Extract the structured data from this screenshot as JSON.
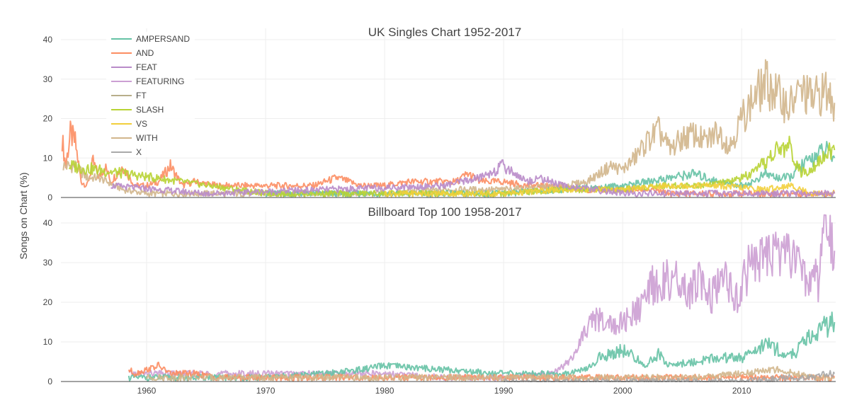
{
  "chart_data": {
    "type": "line",
    "ylabel": "Songs on Chart (%)",
    "xlim": [
      1952.8,
      2017.9
    ],
    "x_ticks": [
      1960,
      1970,
      1980,
      1990,
      2000,
      2010
    ],
    "grid": true,
    "legend_placement": "top-left",
    "legend": [
      {
        "name": "AMPERSAND",
        "color": "#66c2a5"
      },
      {
        "name": "AND",
        "color": "#fc8d62"
      },
      {
        "name": "FEAT",
        "color": "#b98bc9"
      },
      {
        "name": "FEATURING",
        "color": "#cc9fd3"
      },
      {
        "name": "FT",
        "color": "#b8ae8a"
      },
      {
        "name": "SLASH",
        "color": "#b8d334"
      },
      {
        "name": "VS",
        "color": "#f2cf3b"
      },
      {
        "name": "WITH",
        "color": "#d2b68c"
      },
      {
        "name": "X",
        "color": "#a9a9a9"
      }
    ],
    "panels": [
      {
        "title": "UK Singles Chart 1952-2017",
        "ylim": [
          0,
          40
        ],
        "y_ticks": [
          0,
          10,
          20,
          30,
          40
        ],
        "series": [
          {
            "name": "AND",
            "color": "#fc8d62",
            "x": [
              1952.9,
              1953.2,
              1953.6,
              1954.0,
              1954.5,
              1955.0,
              1955.5,
              1956.0,
              1956.5,
              1957.0,
              1958.0,
              1959.0,
              1960.0,
              1961.0,
              1962.0,
              1963.0,
              1964.0,
              1966.0,
              1968.0,
              1970.0,
              1972.0,
              1974.0,
              1976.0,
              1978.0,
              1980.0,
              1982.0,
              1984.0,
              1986.0,
              1987.0,
              1988.0,
              1990.0,
              1992.0,
              1994.0,
              1996.0,
              1998.0,
              2000.0,
              2002.0,
              2004.0,
              2006.0,
              2008.0,
              2010.0,
              2012.0,
              2014.0,
              2016.0,
              2017.8
            ],
            "y": [
              15,
              8,
              16,
              14,
              4,
              3,
              9,
              5,
              8,
              4,
              8,
              3,
              3,
              4,
              8,
              3,
              4,
              3,
              3,
              3,
              3,
              3,
              5,
              3,
              3,
              4,
              4,
              4,
              6,
              4,
              4,
              3,
              3,
              2,
              2,
              2,
              2,
              1,
              1,
              1,
              1,
              1,
              1,
              1,
              1
            ]
          },
          {
            "name": "WITH",
            "color": "#d2b68c",
            "x": [
              1953.0,
              1954.0,
              1955.0,
              1956.0,
              1958.0,
              1960.0,
              1965.0,
              1970.0,
              1975.0,
              1980.0,
              1985.0,
              1990.0,
              1995.0,
              1997.0,
              1998.0,
              1999.0,
              2000.0,
              2001.0,
              2002.0,
              2003.0,
              2004.0,
              2005.0,
              2006.0,
              2007.0,
              2008.0,
              2009.0,
              2010.0,
              2011.0,
              2012.0,
              2013.0,
              2014.0,
              2015.0,
              2016.0,
              2017.0,
              2017.8
            ],
            "y": [
              8,
              8,
              5,
              5,
              2,
              1,
              1,
              1,
              1,
              1,
              2,
              2,
              3,
              4,
              6,
              8,
              7,
              10,
              14,
              17,
              12,
              15,
              16,
              14,
              17,
              13,
              20,
              25,
              29,
              26,
              23,
              27,
              25,
              27,
              24
            ]
          },
          {
            "name": "AMPERSAND",
            "color": "#66c2a5",
            "x": [
              1970.0,
              1980.0,
              1990.0,
              1995.0,
              2000.0,
              2002.0,
              2004.0,
              2006.0,
              2008.0,
              2010.0,
              2011.0,
              2012.0,
              2013.0,
              2014.0,
              2015.0,
              2016.0,
              2017.0,
              2017.8
            ],
            "y": [
              1,
              1,
              1,
              2,
              3,
              4,
              5,
              6,
              4,
              3,
              4,
              6,
              5,
              5,
              8,
              10,
              12,
              10
            ]
          },
          {
            "name": "SLASH",
            "color": "#b8d334",
            "x": [
              1953.5,
              1970.0,
              1985.0,
              1990.0,
              1995.0,
              2000.0,
              2003.0,
              2006.0,
              2009.0,
              2011.0,
              2012.0,
              2013.0,
              2014.0,
              2015.0,
              2016.0,
              2017.0,
              2017.8
            ],
            "y": [
              8,
              1,
              1,
              1,
              2,
              2,
              3,
              3,
              4,
              6,
              9,
              12,
              13,
              6,
              8,
              11,
              12
            ]
          },
          {
            "name": "VS",
            "color": "#f2cf3b",
            "x": [
              1980.0,
              1990.0,
              1995.0,
              2000.0,
              2004.0,
              2008.0,
              2012.0,
              2014.0,
              2016.0,
              2017.8
            ],
            "y": [
              1,
              1,
              2,
              2,
              3,
              3,
              2,
              3,
              1,
              1
            ]
          },
          {
            "name": "FEAT",
            "color": "#b98bc9",
            "x": [
              1957.0,
              1965.0,
              1975.0,
              1985.0,
              1988.0,
              1990.0,
              1991.0,
              1992.0,
              1993.0,
              1995.0,
              2000.0,
              2010.0,
              2017.8
            ],
            "y": [
              3,
              1,
              2,
              3,
              5,
              8,
              6,
              4,
              5,
              3,
              1,
              1,
              1
            ]
          }
        ]
      },
      {
        "title": "Billboard Top 100 1958-2017",
        "ylim": [
          0,
          40
        ],
        "y_ticks": [
          0,
          10,
          20,
          30,
          40
        ],
        "series": [
          {
            "name": "FEATURING",
            "color": "#cc9fd3",
            "x": [
              1958.5,
              1965.0,
              1970.0,
              1975.0,
              1980.0,
              1985.0,
              1990.0,
              1994.0,
              1995.5,
              1996.5,
              1997.5,
              1998.5,
              1999.5,
              2000.5,
              2001.5,
              2002.5,
              2003.5,
              2004.5,
              2005.5,
              2006.5,
              2007.5,
              2008.5,
              2009.5,
              2010.5,
              2011.5,
              2012.5,
              2013.5,
              2014.5,
              2015.5,
              2016.5,
              2017.0,
              2017.8
            ],
            "y": [
              2,
              2,
              2,
              2,
              2,
              1,
              1,
              2,
              5,
              10,
              16,
              15,
              14,
              16,
              18,
              24,
              26,
              25,
              22,
              25,
              21,
              26,
              20,
              28,
              31,
              30,
              34,
              30,
              26,
              25,
              38,
              33
            ]
          },
          {
            "name": "AMPERSAND",
            "color": "#66c2a5",
            "x": [
              1958.5,
              1965.0,
              1970.0,
              1975.0,
              1978.0,
              1980.0,
              1985.0,
              1990.0,
              1995.0,
              1997.0,
              1998.0,
              1999.0,
              2000.0,
              2001.0,
              2002.0,
              2003.0,
              2004.0,
              2006.0,
              2008.0,
              2010.0,
              2011.0,
              2012.0,
              2013.0,
              2014.0,
              2015.0,
              2016.0,
              2017.0,
              2017.8
            ],
            "y": [
              1,
              1,
              1,
              2,
              3,
              4,
              3,
              2,
              2,
              3,
              6,
              7,
              8,
              6,
              4,
              7,
              4,
              5,
              6,
              6,
              7,
              10,
              8,
              6,
              9,
              12,
              14,
              15
            ]
          },
          {
            "name": "AND",
            "color": "#fc8d62",
            "x": [
              1958.5,
              1959.0,
              1960.0,
              1961.0,
              1962.0,
              1964.0,
              1966.0,
              1970.0,
              1980.0,
              1990.0,
              2017.8
            ],
            "y": [
              3,
              2,
              3,
              4,
              2,
              2,
              1,
              1,
              1,
              1,
              1
            ]
          },
          {
            "name": "WITH",
            "color": "#d2b68c",
            "x": [
              1960.0,
              1980.0,
              1990.0,
              2000.0,
              2006.0,
              2010.0,
              2013.0,
              2016.0,
              2017.8
            ],
            "y": [
              1,
              1,
              1,
              1,
              1,
              2,
              3,
              1,
              1
            ]
          },
          {
            "name": "X",
            "color": "#a9a9a9",
            "x": [
              1990.0,
              2010.0,
              2014.0,
              2016.0,
              2017.0,
              2017.8
            ],
            "y": [
              0,
              0,
              1,
              1,
              2,
              2
            ]
          }
        ]
      }
    ]
  }
}
